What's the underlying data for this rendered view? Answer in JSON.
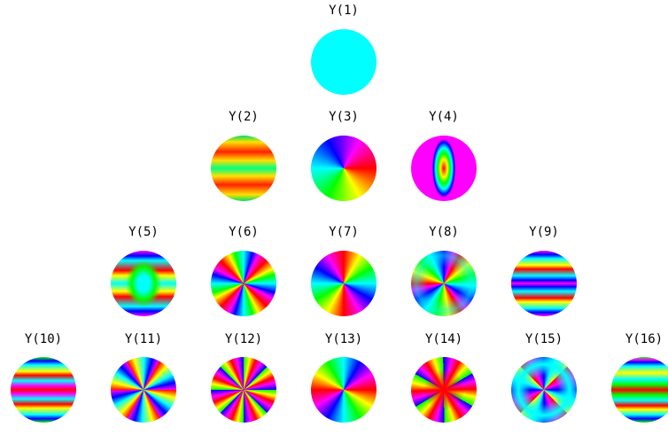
{
  "rows": [
    [
      {
        "label": "Y(1)"
      }
    ],
    [
      {
        "label": "Y(2)"
      },
      {
        "label": "Y(3)"
      },
      {
        "label": "Y(4)"
      }
    ],
    [
      {
        "label": "Y(5)"
      },
      {
        "label": "Y(6)"
      },
      {
        "label": "Y(7)"
      },
      {
        "label": "Y(8)"
      },
      {
        "label": "Y(9)"
      }
    ],
    [
      {
        "label": "Y(10)"
      },
      {
        "label": "Y(11)"
      },
      {
        "label": "Y(12)"
      },
      {
        "label": "Y(13)"
      },
      {
        "label": "Y(14)"
      },
      {
        "label": "Y(15)"
      },
      {
        "label": "Y(16)"
      }
    ]
  ]
}
